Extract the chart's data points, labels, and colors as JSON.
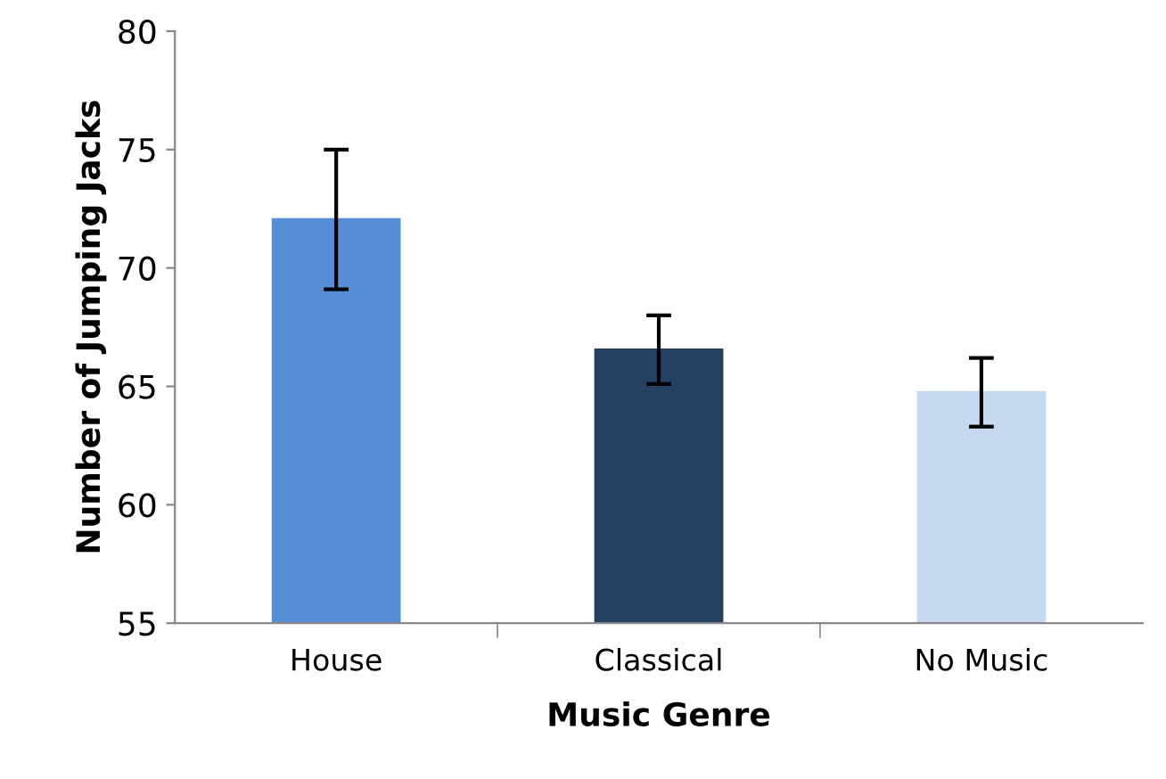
{
  "chart_data": {
    "type": "bar",
    "xlabel": "Music Genre",
    "ylabel": "Number of Jumping Jacks",
    "categories": [
      "House",
      "Classical",
      "No Music"
    ],
    "values": [
      72.1,
      66.6,
      64.8
    ],
    "colors": [
      "#558ed5",
      "#254061",
      "#c6d9f1"
    ],
    "errors": [
      [
        69.1,
        75.0
      ],
      [
        65.1,
        68.0
      ],
      [
        63.3,
        66.2
      ]
    ],
    "ylim": [
      55,
      80
    ],
    "yticks": [
      55,
      60,
      65,
      70,
      75,
      80
    ],
    "grid": false,
    "legend": false
  }
}
